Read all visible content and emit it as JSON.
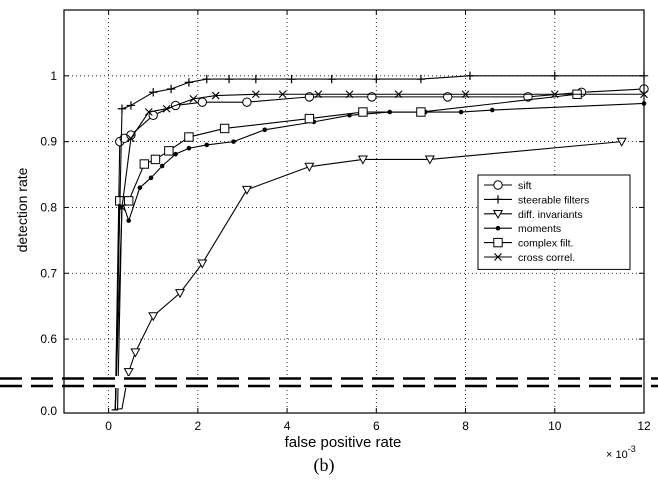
{
  "caption": "(b)",
  "chart_data": {
    "type": "line",
    "xlabel": "false positive rate",
    "ylabel": "detection rate",
    "x_multiplier_label": "× 10",
    "x_multiplier_exp": "-3",
    "xlim": [
      -1,
      12
    ],
    "ylim_upper": [
      0.55,
      1.1
    ],
    "ylim_lower_axis_value": 0.0,
    "axis_break": true,
    "grid": true,
    "legend_position": "right",
    "x_ticks": [
      {
        "v": 0,
        "label": "0"
      },
      {
        "v": 2,
        "label": "2"
      },
      {
        "v": 4,
        "label": "4"
      },
      {
        "v": 6,
        "label": "6"
      },
      {
        "v": 8,
        "label": "8"
      },
      {
        "v": 10,
        "label": "10"
      },
      {
        "v": 12,
        "label": "12"
      }
    ],
    "y_ticks": [
      {
        "v": 0.6,
        "label": "0.6"
      },
      {
        "v": 0.7,
        "label": "0.7"
      },
      {
        "v": 0.8,
        "label": "0.8"
      },
      {
        "v": 0.9,
        "label": "0.9"
      },
      {
        "v": 1.0,
        "label": "1"
      }
    ],
    "y_break_tick_label": "0.0",
    "series": [
      {
        "name": "sift",
        "marker": "circle",
        "x": [
          0.07,
          0.15,
          0.25,
          0.35,
          0.5,
          1.0,
          1.5,
          2.1,
          3.1,
          4.5,
          5.9,
          7.6,
          9.4,
          10.6,
          12.0
        ],
        "y": [
          0.0,
          0.0,
          0.9,
          0.905,
          0.91,
          0.94,
          0.955,
          0.96,
          0.96,
          0.968,
          0.968,
          0.968,
          0.968,
          0.975,
          0.98
        ]
      },
      {
        "name": "steerable filters",
        "marker": "plus",
        "x": [
          0.07,
          0.15,
          0.3,
          0.5,
          1.0,
          1.4,
          1.8,
          2.2,
          2.7,
          3.3,
          4.1,
          5.0,
          6.0,
          7.0,
          8.1,
          10.0,
          12.0
        ],
        "y": [
          0.0,
          0.0,
          0.95,
          0.955,
          0.975,
          0.98,
          0.99,
          0.995,
          0.995,
          0.995,
          0.995,
          0.995,
          0.995,
          0.995,
          1.0,
          1.0,
          1.0
        ]
      },
      {
        "name": "diff. invariants",
        "marker": "triangle-down",
        "x": [
          0.07,
          0.2,
          0.3,
          0.45,
          0.6,
          1.0,
          1.6,
          2.1,
          3.1,
          4.5,
          5.7,
          7.2,
          11.5
        ],
        "y": [
          0.0,
          0.02,
          0.03,
          0.55,
          0.58,
          0.635,
          0.67,
          0.715,
          0.827,
          0.862,
          0.873,
          0.873,
          0.9
        ]
      },
      {
        "name": "moments",
        "marker": "dot",
        "x": [
          0.07,
          0.2,
          0.3,
          0.45,
          0.7,
          0.95,
          1.2,
          1.5,
          1.8,
          2.2,
          2.8,
          3.5,
          4.6,
          5.4,
          6.3,
          7.1,
          7.9,
          8.6,
          12.0
        ],
        "y": [
          0.0,
          0.0,
          0.81,
          0.78,
          0.83,
          0.845,
          0.863,
          0.881,
          0.89,
          0.895,
          0.9,
          0.918,
          0.93,
          0.94,
          0.945,
          0.945,
          0.945,
          0.948,
          0.958
        ]
      },
      {
        "name": "complex filt.",
        "marker": "square",
        "x": [
          0.07,
          0.15,
          0.25,
          0.35,
          0.45,
          0.8,
          1.05,
          1.35,
          1.8,
          2.6,
          4.5,
          5.7,
          7.0,
          10.5
        ],
        "y": [
          0.0,
          0.0,
          0.81,
          0.81,
          0.81,
          0.866,
          0.873,
          0.886,
          0.907,
          0.92,
          0.935,
          0.945,
          0.945,
          0.972
        ]
      },
      {
        "name": "cross correl.",
        "marker": "x",
        "x": [
          0.07,
          0.15,
          0.3,
          0.5,
          0.9,
          1.3,
          1.9,
          2.4,
          3.3,
          3.9,
          4.7,
          5.4,
          6.5,
          8.0,
          10.0,
          12.0
        ],
        "y": [
          0.0,
          0.0,
          0.8,
          0.905,
          0.945,
          0.95,
          0.965,
          0.97,
          0.972,
          0.972,
          0.972,
          0.972,
          0.972,
          0.972,
          0.972,
          0.972
        ]
      }
    ]
  }
}
